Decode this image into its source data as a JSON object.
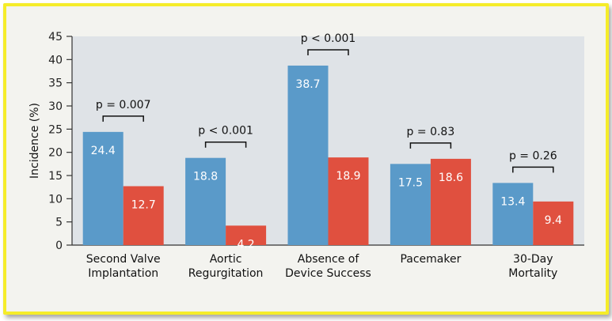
{
  "chart_data": {
    "type": "bar",
    "ylabel": "Incidence (%)",
    "ylim": [
      0,
      45
    ],
    "yticks": [
      0,
      5,
      10,
      15,
      20,
      25,
      30,
      35,
      40,
      45
    ],
    "categories": [
      [
        "Second Valve",
        "Implantation"
      ],
      [
        "Aortic",
        "Regurgitation"
      ],
      [
        "Absence of",
        "Device Success"
      ],
      [
        "Pacemaker"
      ],
      [
        "30-Day",
        "Mortality"
      ]
    ],
    "series": [
      {
        "values": [
          24.4,
          18.8,
          38.7,
          17.5,
          13.4
        ],
        "color": "#5a9ac9"
      },
      {
        "values": [
          12.7,
          4.2,
          18.9,
          18.6,
          9.4
        ],
        "color": "#e0503f"
      }
    ],
    "data_labels": [
      [
        "24.4",
        "18.8",
        "38.7",
        "17.5",
        "13.4"
      ],
      [
        "12.7",
        "4.2",
        "18.9",
        "18.6",
        "9.4"
      ]
    ],
    "p_values": [
      "p = 0.007",
      "p < 0.001",
      "p < 0.001",
      "p = 0.83",
      "p = 0.26"
    ],
    "plot_background": "#dfe3e7",
    "grid": false
  }
}
